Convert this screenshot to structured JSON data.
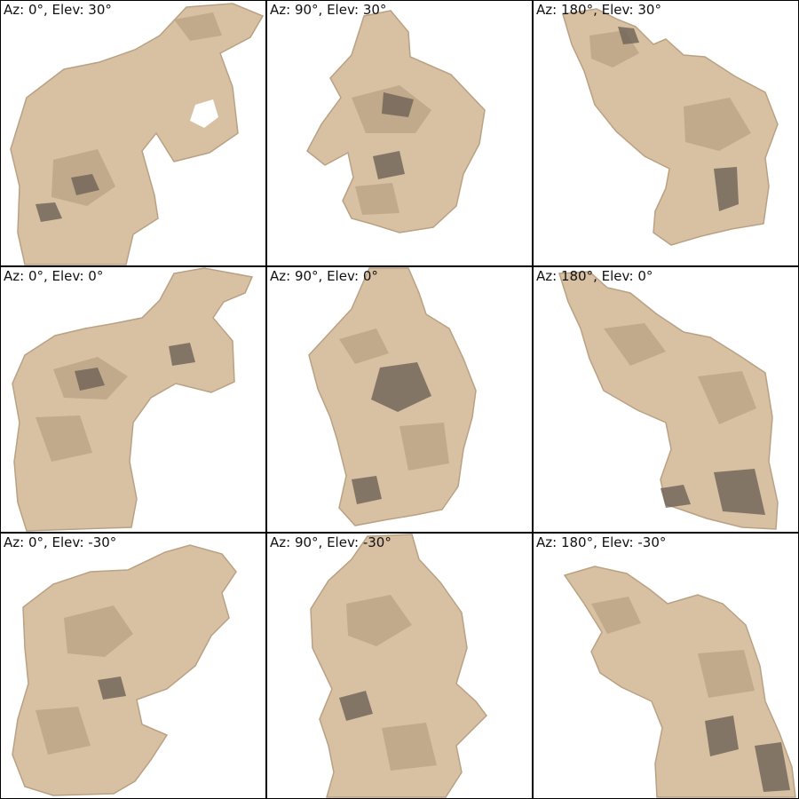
{
  "colors": {
    "surface": "#d8c1a2",
    "shade_mid": "#b9a184",
    "shade_dark": "#6e6258",
    "highlight": "#ead8bf",
    "border": "#000000"
  },
  "panels": [
    {
      "caption": "Az: 0°, Elev: 30°"
    },
    {
      "caption": "Az: 90°, Elev: 30°"
    },
    {
      "caption": "Az: 180°, Elev: 30°"
    },
    {
      "caption": "Az: 0°, Elev: 0°"
    },
    {
      "caption": "Az: 90°, Elev: 0°"
    },
    {
      "caption": "Az: 180°, Elev: 0°"
    },
    {
      "caption": "Az: 0°, Elev: -30°"
    },
    {
      "caption": "Az: 90°, Elev: -30°"
    },
    {
      "caption": "Az: 180°, Elev: -30°"
    }
  ]
}
